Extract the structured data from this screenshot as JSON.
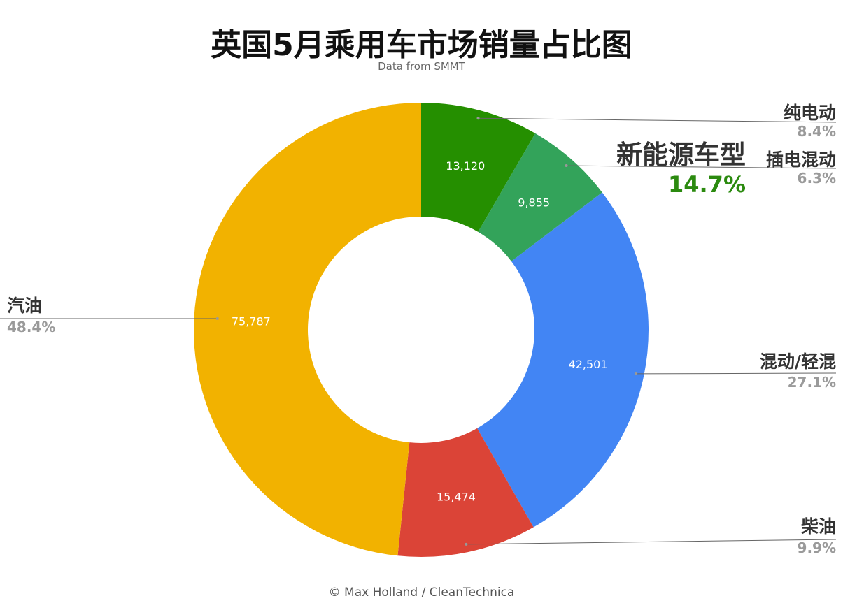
{
  "title": "英国5月乘用车市场销量占比图",
  "subtitle": "Data from SMMT",
  "footer": "© Max Holland / CleanTechnica",
  "nev_label": "新能源车型",
  "nev_percent": "14.7%",
  "chart_data": {
    "type": "pie",
    "variant": "donut",
    "title": "英国5月乘用车市场销量占比图",
    "subtitle": "Data from SMMT",
    "categories": [
      "纯电动",
      "插电混动",
      "混动/轻混",
      "柴油",
      "汽油"
    ],
    "values": [
      13120,
      9855,
      42501,
      15474,
      75787
    ],
    "value_labels": [
      "13,120",
      "9,855",
      "42,501",
      "15,474",
      "75,787"
    ],
    "percent_labels": [
      "8.4%",
      "6.3%",
      "27.1%",
      "9.9%",
      "48.4%"
    ],
    "colors": [
      "#258f00",
      "#33a35a",
      "#4285f4",
      "#db4437",
      "#f2b200"
    ],
    "value_label_colors": [
      "#ffffff",
      "#ffffff",
      "#ffffff",
      "#ffffff",
      "#000000"
    ],
    "legend": "none",
    "annotations": [
      {
        "text": "新能源车型",
        "value": "14.7%"
      }
    ]
  }
}
